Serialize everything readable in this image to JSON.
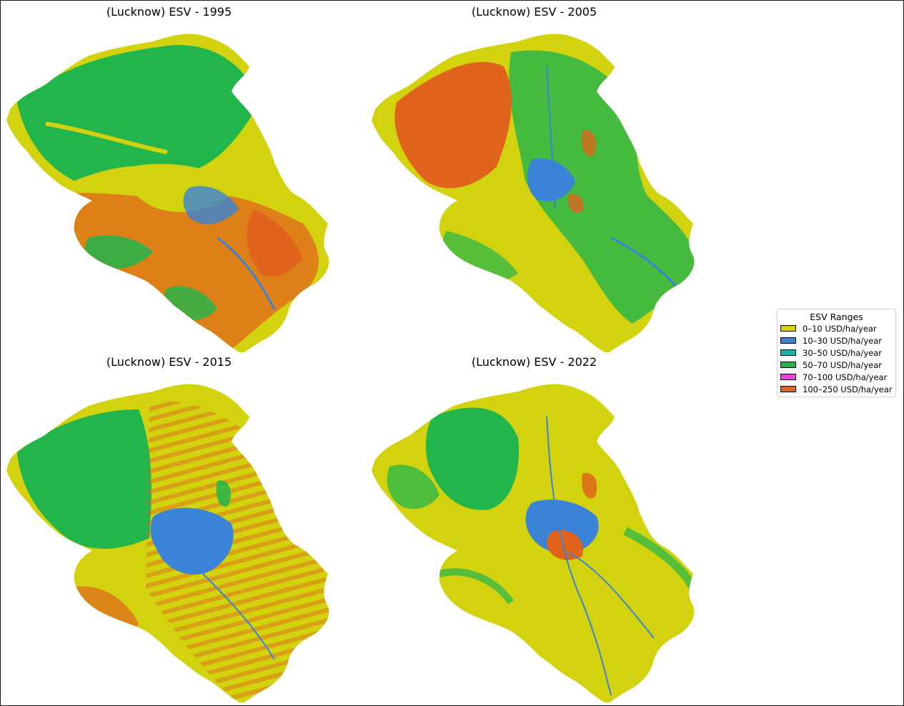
{
  "legend": {
    "title": "ESV Ranges",
    "items": [
      {
        "label": "0–10 USD/ha/year",
        "color": "#d2d20e"
      },
      {
        "label": "10–30 USD/ha/year",
        "color": "#3a83d6"
      },
      {
        "label": "30–50 USD/ha/year",
        "color": "#1cb2a6"
      },
      {
        "label": "50–70 USD/ha/year",
        "color": "#21b54b"
      },
      {
        "label": "70–100 USD/ha/year",
        "color": "#e048d8"
      },
      {
        "label": "100–250 USD/ha/year",
        "color": "#e0641c"
      }
    ]
  },
  "maps": [
    {
      "title": "(Lucknow) ESV - 1995",
      "year": "1995",
      "base_color": "#d2d20e",
      "dominant": [
        "#21b54b",
        "#d2d20e",
        "#e0641c",
        "#3a83d6"
      ]
    },
    {
      "title": "(Lucknow) ESV - 2005",
      "year": "2005",
      "base_color": "#d2d20e",
      "dominant": [
        "#21b54b",
        "#d2d20e",
        "#e0641c",
        "#3a83d6"
      ]
    },
    {
      "title": "(Lucknow) ESV - 2015",
      "year": "2015",
      "base_color": "#d2d20e",
      "dominant": [
        "#21b54b",
        "#d2d20e",
        "#3a83d6",
        "#e0641c"
      ]
    },
    {
      "title": "(Lucknow) ESV - 2022",
      "year": "2022",
      "base_color": "#d2d20e",
      "dominant": [
        "#d2d20e",
        "#21b54b",
        "#3a83d6",
        "#e0641c"
      ]
    }
  ]
}
